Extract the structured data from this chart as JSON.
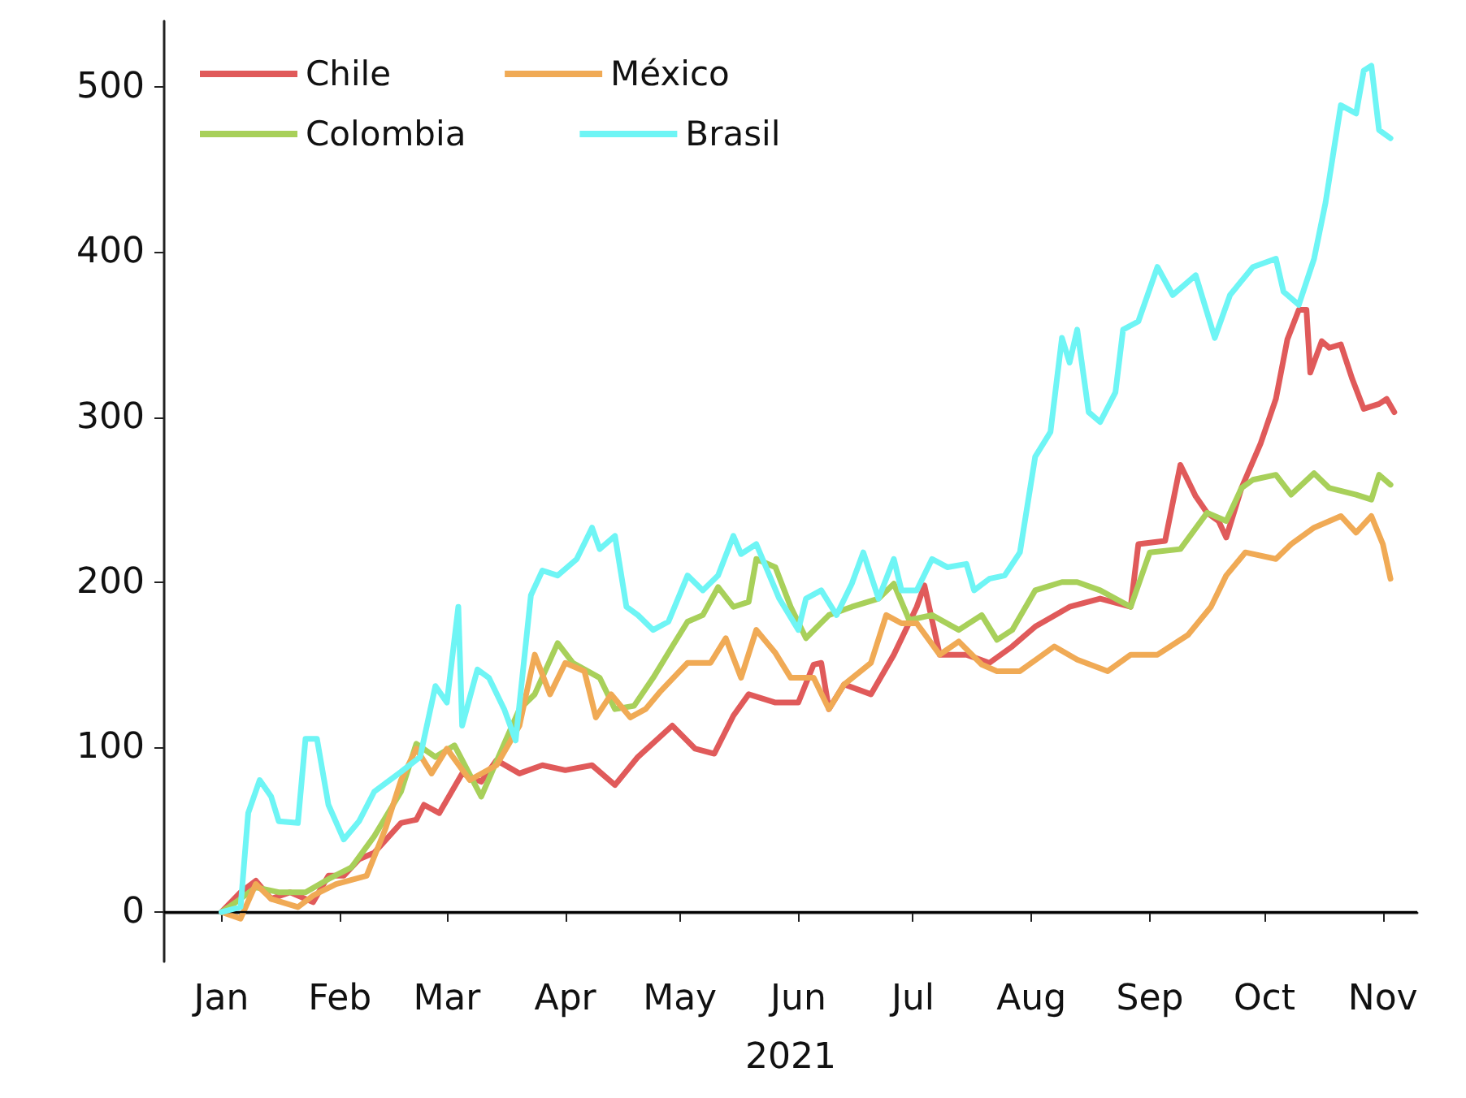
{
  "chart_data": {
    "type": "line",
    "xlabel": "2021",
    "legend": "top left",
    "grid": false,
    "line_style": "solid",
    "marker": "none",
    "xlim": [
      "2020-12-17",
      "2021-11-10"
    ],
    "xticks": [
      {
        "value": "2021-01-01",
        "label": "Jan"
      },
      {
        "value": "2021-02-01",
        "label": "Feb"
      },
      {
        "value": "2021-03-01",
        "label": "Mar"
      },
      {
        "value": "2021-04-01",
        "label": "Apr"
      },
      {
        "value": "2021-05-01",
        "label": "May"
      },
      {
        "value": "2021-06-01",
        "label": "Jun"
      },
      {
        "value": "2021-07-01",
        "label": "Jul"
      },
      {
        "value": "2021-08-01",
        "label": "Aug"
      },
      {
        "value": "2021-09-01",
        "label": "Sep"
      },
      {
        "value": "2021-10-01",
        "label": "Oct"
      },
      {
        "value": "2021-11-01",
        "label": "Nov"
      }
    ],
    "ylim": [
      -30,
      540
    ],
    "yticks": [
      0,
      100,
      200,
      300,
      400,
      500
    ],
    "ref_lines": [
      {
        "axis": "y",
        "value": 0,
        "color": "#000000"
      }
    ],
    "series": [
      {
        "name": "Chile",
        "color": "#e05a5a",
        "x": [
          "2021-01-01",
          "2021-01-06",
          "2021-01-10",
          "2021-01-14",
          "2021-01-19",
          "2021-01-25",
          "2021-01-29",
          "2021-02-02",
          "2021-02-06",
          "2021-02-10",
          "2021-02-17",
          "2021-02-21",
          "2021-02-23",
          "2021-02-27",
          "2021-03-05",
          "2021-03-10",
          "2021-03-14",
          "2021-03-20",
          "2021-03-26",
          "2021-04-01",
          "2021-04-08",
          "2021-04-14",
          "2021-04-20",
          "2021-04-29",
          "2021-05-05",
          "2021-05-10",
          "2021-05-15",
          "2021-05-19",
          "2021-05-26",
          "2021-06-01",
          "2021-06-05",
          "2021-06-07",
          "2021-06-09",
          "2021-06-13",
          "2021-06-20",
          "2021-06-26",
          "2021-07-02",
          "2021-07-04",
          "2021-07-08",
          "2021-07-15",
          "2021-07-21",
          "2021-07-27",
          "2021-08-02",
          "2021-08-11",
          "2021-08-19",
          "2021-08-27",
          "2021-08-29",
          "2021-09-05",
          "2021-09-09",
          "2021-09-13",
          "2021-09-16",
          "2021-09-19",
          "2021-09-21",
          "2021-09-25",
          "2021-09-30",
          "2021-10-04",
          "2021-10-07",
          "2021-10-10",
          "2021-10-12",
          "2021-10-13",
          "2021-10-16",
          "2021-10-18",
          "2021-10-21",
          "2021-10-24",
          "2021-10-27",
          "2021-10-31",
          "2021-11-02",
          "2021-11-04"
        ],
        "values": [
          0,
          12,
          19,
          8,
          12,
          6,
          22,
          22,
          32,
          36,
          54,
          56,
          65,
          60,
          84,
          79,
          92,
          84,
          89,
          86,
          89,
          77,
          94,
          113,
          99,
          96,
          119,
          132,
          127,
          127,
          150,
          151,
          123,
          138,
          132,
          156,
          185,
          198,
          156,
          156,
          151,
          161,
          173,
          185,
          190,
          185,
          223,
          225,
          271,
          252,
          242,
          237,
          227,
          257,
          284,
          311,
          347,
          365,
          365,
          327,
          346,
          342,
          344,
          323,
          305,
          308,
          311,
          303
        ]
      },
      {
        "name": "Colombia",
        "color": "#a8d05a",
        "x": [
          "2021-01-01",
          "2021-01-06",
          "2021-01-10",
          "2021-01-16",
          "2021-01-23",
          "2021-01-29",
          "2021-02-04",
          "2021-02-10",
          "2021-02-17",
          "2021-02-21",
          "2021-02-26",
          "2021-03-03",
          "2021-03-10",
          "2021-03-16",
          "2021-03-20",
          "2021-03-24",
          "2021-03-30",
          "2021-04-03",
          "2021-04-10",
          "2021-04-14",
          "2021-04-19",
          "2021-04-24",
          "2021-04-29",
          "2021-05-03",
          "2021-05-07",
          "2021-05-11",
          "2021-05-15",
          "2021-05-19",
          "2021-05-21",
          "2021-05-26",
          "2021-05-30",
          "2021-06-03",
          "2021-06-09",
          "2021-06-15",
          "2021-06-22",
          "2021-06-26",
          "2021-06-30",
          "2021-07-06",
          "2021-07-13",
          "2021-07-19",
          "2021-07-23",
          "2021-07-27",
          "2021-08-02",
          "2021-08-09",
          "2021-08-13",
          "2021-08-19",
          "2021-08-27",
          "2021-09-01",
          "2021-09-09",
          "2021-09-16",
          "2021-09-21",
          "2021-09-25",
          "2021-09-28",
          "2021-10-04",
          "2021-10-08",
          "2021-10-14",
          "2021-10-18",
          "2021-10-25",
          "2021-10-29",
          "2021-10-31",
          "2021-11-03"
        ],
        "values": [
          0,
          8,
          15,
          12,
          12,
          20,
          27,
          46,
          73,
          102,
          94,
          101,
          70,
          102,
          123,
          132,
          163,
          151,
          142,
          123,
          125,
          142,
          161,
          176,
          180,
          197,
          185,
          188,
          214,
          209,
          185,
          166,
          180,
          185,
          190,
          199,
          177,
          180,
          171,
          180,
          165,
          171,
          195,
          200,
          200,
          195,
          185,
          218,
          220,
          242,
          237,
          257,
          262,
          265,
          253,
          266,
          257,
          253,
          250,
          265,
          259
        ]
      },
      {
        "name": "México",
        "color": "#f0aa55",
        "x": [
          "2021-01-01",
          "2021-01-06",
          "2021-01-10",
          "2021-01-14",
          "2021-01-21",
          "2021-01-25",
          "2021-01-31",
          "2021-02-08",
          "2021-02-13",
          "2021-02-17",
          "2021-02-21",
          "2021-02-25",
          "2021-03-01",
          "2021-03-07",
          "2021-03-14",
          "2021-03-20",
          "2021-03-24",
          "2021-03-28",
          "2021-04-01",
          "2021-04-06",
          "2021-04-09",
          "2021-04-13",
          "2021-04-18",
          "2021-04-22",
          "2021-04-26",
          "2021-05-03",
          "2021-05-09",
          "2021-05-13",
          "2021-05-17",
          "2021-05-21",
          "2021-05-26",
          "2021-05-30",
          "2021-06-05",
          "2021-06-09",
          "2021-06-13",
          "2021-06-20",
          "2021-06-24",
          "2021-06-28",
          "2021-07-02",
          "2021-07-08",
          "2021-07-13",
          "2021-07-19",
          "2021-07-23",
          "2021-07-29",
          "2021-08-07",
          "2021-08-13",
          "2021-08-21",
          "2021-08-27",
          "2021-09-03",
          "2021-09-11",
          "2021-09-17",
          "2021-09-21",
          "2021-09-26",
          "2021-10-04",
          "2021-10-08",
          "2021-10-14",
          "2021-10-21",
          "2021-10-25",
          "2021-10-29",
          "2021-11-01",
          "2021-11-03"
        ],
        "values": [
          0,
          -4,
          17,
          8,
          3,
          10,
          17,
          22,
          51,
          80,
          99,
          84,
          99,
          80,
          89,
          113,
          156,
          132,
          151,
          146,
          118,
          132,
          118,
          123,
          134,
          151,
          151,
          166,
          142,
          171,
          157,
          142,
          142,
          123,
          138,
          151,
          180,
          175,
          175,
          156,
          164,
          150,
          146,
          146,
          161,
          153,
          146,
          156,
          156,
          168,
          185,
          204,
          218,
          214,
          223,
          233,
          240,
          230,
          240,
          223,
          202
        ]
      },
      {
        "name": "Brasil",
        "color": "#6ef5f5",
        "x": [
          "2021-01-01",
          "2021-01-06",
          "2021-01-08",
          "2021-01-11",
          "2021-01-14",
          "2021-01-16",
          "2021-01-21",
          "2021-01-23",
          "2021-01-26",
          "2021-01-29",
          "2021-02-02",
          "2021-02-06",
          "2021-02-10",
          "2021-02-17",
          "2021-02-22",
          "2021-02-26",
          "2021-03-01",
          "2021-03-04",
          "2021-03-05",
          "2021-03-09",
          "2021-03-12",
          "2021-03-16",
          "2021-03-19",
          "2021-03-23",
          "2021-03-26",
          "2021-03-30",
          "2021-04-04",
          "2021-04-08",
          "2021-04-10",
          "2021-04-14",
          "2021-04-17",
          "2021-04-20",
          "2021-04-24",
          "2021-04-28",
          "2021-05-03",
          "2021-05-07",
          "2021-05-11",
          "2021-05-15",
          "2021-05-17",
          "2021-05-21",
          "2021-05-27",
          "2021-06-01",
          "2021-06-03",
          "2021-06-07",
          "2021-06-11",
          "2021-06-15",
          "2021-06-18",
          "2021-06-22",
          "2021-06-26",
          "2021-06-28",
          "2021-07-02",
          "2021-07-06",
          "2021-07-10",
          "2021-07-15",
          "2021-07-17",
          "2021-07-21",
          "2021-07-25",
          "2021-07-29",
          "2021-08-02",
          "2021-08-06",
          "2021-08-09",
          "2021-08-11",
          "2021-08-13",
          "2021-08-16",
          "2021-08-19",
          "2021-08-23",
          "2021-08-25",
          "2021-08-29",
          "2021-09-03",
          "2021-09-07",
          "2021-09-13",
          "2021-09-18",
          "2021-09-22",
          "2021-09-28",
          "2021-10-04",
          "2021-10-06",
          "2021-10-10",
          "2021-10-14",
          "2021-10-17",
          "2021-10-21",
          "2021-10-25",
          "2021-10-27",
          "2021-10-29",
          "2021-10-31",
          "2021-11-03"
        ],
        "values": [
          0,
          3,
          60,
          80,
          70,
          55,
          54,
          105,
          105,
          65,
          44,
          55,
          73,
          85,
          94,
          137,
          127,
          185,
          113,
          147,
          142,
          123,
          104,
          192,
          207,
          204,
          214,
          233,
          220,
          228,
          185,
          180,
          171,
          176,
          204,
          195,
          204,
          228,
          217,
          223,
          190,
          171,
          190,
          195,
          180,
          199,
          218,
          190,
          214,
          195,
          195,
          214,
          209,
          211,
          195,
          202,
          204,
          218,
          276,
          291,
          348,
          333,
          353,
          303,
          297,
          315,
          353,
          358,
          391,
          374,
          386,
          348,
          374,
          391,
          396,
          376,
          368,
          396,
          430,
          489,
          484,
          510,
          513,
          474,
          469
        ]
      }
    ]
  }
}
